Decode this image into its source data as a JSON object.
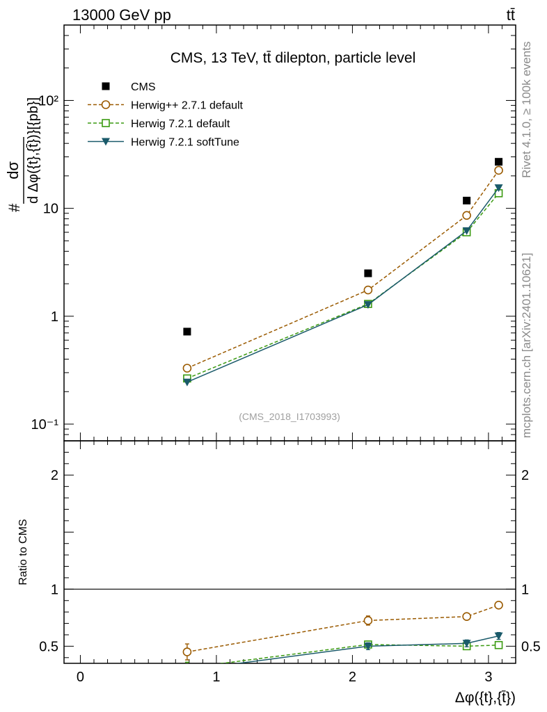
{
  "header": {
    "left": "13000 GeV pp",
    "right": "tt̄"
  },
  "side": {
    "rivet": "Rivet 4.1.0, ≥ 100k events",
    "mcplots": "mcplots.cern.ch [arXiv:2401.10621]"
  },
  "chart_data": {
    "type": "line",
    "title": "CMS, 13 TeV, tt̄ dilepton, particle level",
    "analysis_label": "(CMS_2018_I1703993)",
    "xlabel": "Δφ({t},{t̄})",
    "ylabel_top": "#dσ/dΔφ({t},{t̄})}[{pb}]",
    "ylabel_top_parts": {
      "hash": "#",
      "num": "dσ",
      "den": "d Δφ({t},{t̄})}[{pb}]"
    },
    "ylabel_ratio": "Ratio to CMS",
    "xlim": [
      -0.12,
      3.2
    ],
    "ylim_main": [
      0.07,
      500
    ],
    "ylim_ratio": [
      0.35,
      2.3
    ],
    "yscale_main": "log",
    "x_ticks": [
      0,
      1,
      2,
      3
    ],
    "x_tick_labels": [
      "0",
      "1",
      "2",
      "3"
    ],
    "y_ticks_main": [
      0.1,
      1,
      10,
      100
    ],
    "y_tick_labels_main": [
      "10⁻¹",
      "1",
      "10",
      "10²"
    ],
    "y_ticks_ratio": [
      0.5,
      1,
      2
    ],
    "y_tick_labels_ratio": [
      "0.5",
      "1",
      "2"
    ],
    "x": [
      0.785,
      2.115,
      2.84,
      3.075
    ],
    "legend_position": "top-left",
    "series": [
      {
        "name": "CMS",
        "color": "#000000",
        "marker": "square",
        "line": "none",
        "values": [
          0.72,
          2.5,
          11.8,
          27.0
        ],
        "ratio": [
          1,
          1,
          1,
          1
        ],
        "errors": [
          0,
          0,
          0,
          0
        ]
      },
      {
        "name": "Herwig++ 2.7.1 default",
        "color": "#9a5a00",
        "marker": "circle-open",
        "line": "dashed",
        "values": [
          0.33,
          1.75,
          8.6,
          22.5
        ],
        "ratio": [
          0.45,
          0.725,
          0.76,
          0.86
        ],
        "errors": [
          0.07,
          0.04,
          0.025,
          0.025
        ]
      },
      {
        "name": "Herwig 7.2.1 default",
        "color": "#3a9a10",
        "marker": "square-open",
        "line": "dashed",
        "values": [
          0.265,
          1.3,
          6.0,
          13.8
        ],
        "ratio": [
          0.31,
          0.515,
          0.5,
          0.51
        ],
        "errors": [
          0.05,
          0.03,
          0.025,
          0.03
        ]
      },
      {
        "name": "Herwig 7.2.1 softTune",
        "color": "#1a5a6a",
        "marker": "triangle-down",
        "line": "solid",
        "values": [
          0.245,
          1.28,
          6.2,
          15.5
        ],
        "ratio": [
          0.29,
          0.5,
          0.525,
          0.59
        ],
        "errors": [
          0.05,
          0.03,
          0.03,
          0.03
        ]
      }
    ]
  }
}
